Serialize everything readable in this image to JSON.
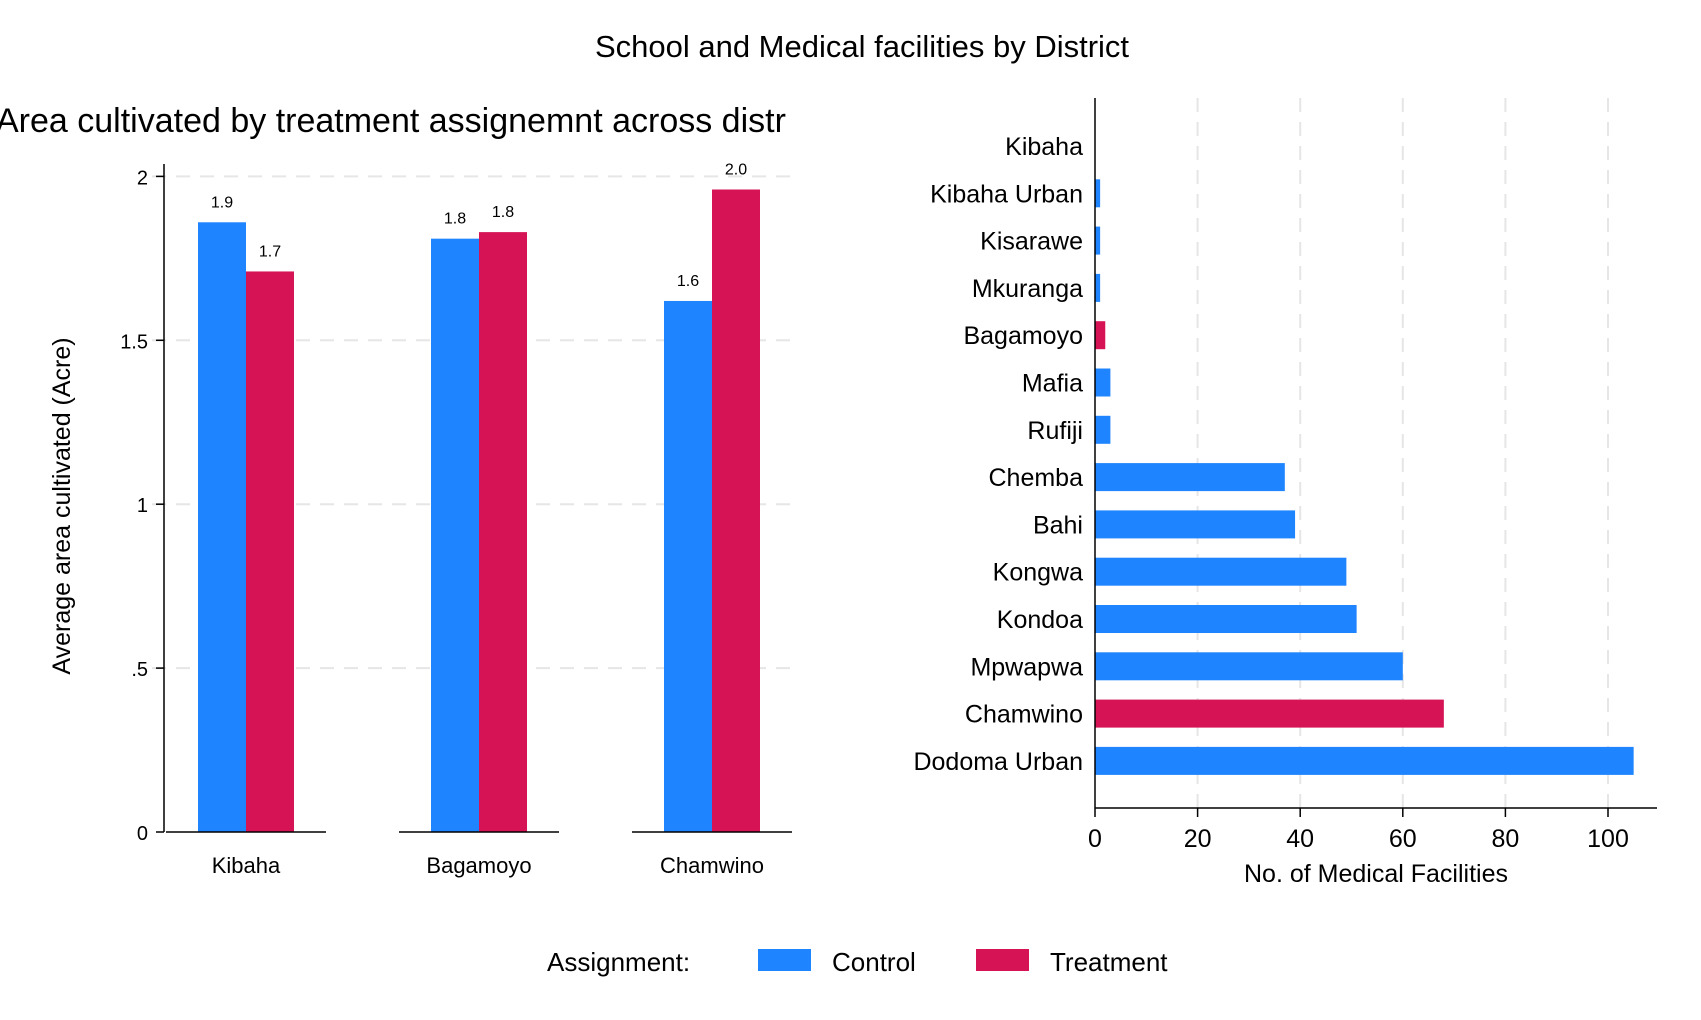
{
  "figure": {
    "title": "School and Medical facilities by District"
  },
  "legend": {
    "title": "Assignment:",
    "position": "bottom-center",
    "items": [
      {
        "label": "Control",
        "color": "#1f84ff"
      },
      {
        "label": "Treatment",
        "color": "#d61355"
      }
    ]
  },
  "chart_data": [
    {
      "type": "bar",
      "orientation": "vertical",
      "title": "Area cultivated by treatment assignemnt across distr",
      "xlabel": "",
      "ylabel": "Average area cultivated (Acre)",
      "categories": [
        "Kibaha",
        "Bagamoyo",
        "Chamwino"
      ],
      "series": [
        {
          "name": "Control",
          "color": "#1f84ff",
          "values": [
            1.86,
            1.81,
            1.62
          ],
          "labels": [
            "1.9",
            "1.8",
            "1.6"
          ]
        },
        {
          "name": "Treatment",
          "color": "#d61355",
          "values": [
            1.71,
            1.83,
            1.96
          ],
          "labels": [
            "1.7",
            "1.8",
            "2.0"
          ]
        }
      ],
      "ylim": [
        0,
        2.05
      ],
      "yticks": [
        0,
        0.5,
        1,
        1.5,
        2
      ],
      "ytick_labels": [
        "0",
        ".5",
        "1",
        "1.5",
        "2"
      ],
      "grid": "horizontal dashed"
    },
    {
      "type": "bar",
      "orientation": "horizontal",
      "title": "",
      "xlabel": "No. of Medical Facilities",
      "ylabel": "",
      "categories": [
        "Kibaha",
        "Kibaha Urban",
        "Kisarawe",
        "Mkuranga",
        "Bagamoyo",
        "Mafia",
        "Rufiji",
        "Chemba",
        "Bahi",
        "Kongwa",
        "Kondoa",
        "Mpwapwa",
        "Chamwino",
        "Dodoma Urban"
      ],
      "values": [
        0,
        1,
        1,
        1,
        2,
        3,
        3,
        37,
        39,
        49,
        51,
        60,
        68,
        105
      ],
      "assignment": [
        "Control",
        "Control",
        "Control",
        "Control",
        "Treatment",
        "Control",
        "Control",
        "Control",
        "Control",
        "Control",
        "Control",
        "Control",
        "Treatment",
        "Control"
      ],
      "xlim": [
        0,
        110
      ],
      "xticks": [
        0,
        20,
        40,
        60,
        80,
        100
      ],
      "xtick_labels": [
        "0",
        "20",
        "40",
        "60",
        "80",
        "100"
      ],
      "grid": "vertical dashed"
    }
  ]
}
